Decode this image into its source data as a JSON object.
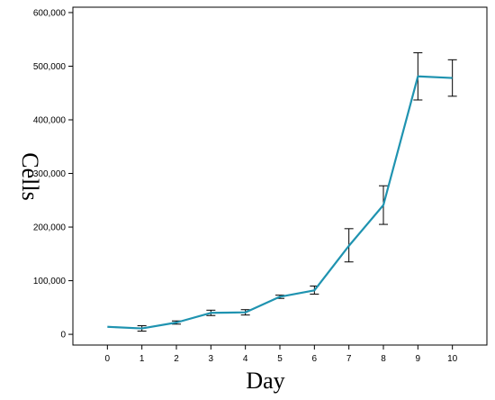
{
  "chart_data": {
    "type": "line",
    "title": "",
    "xlabel": "Day",
    "ylabel": "Cells",
    "x": [
      0,
      1,
      2,
      3,
      4,
      5,
      6,
      7,
      8,
      9,
      10
    ],
    "x_tick_labels": [
      "0",
      "1",
      "2",
      "3",
      "4",
      "5",
      "6",
      "7",
      "8",
      "9",
      "10"
    ],
    "xlim": [
      -1,
      11
    ],
    "ylim": [
      -20000,
      610000
    ],
    "y_ticks": [
      0,
      100000,
      200000,
      300000,
      400000,
      500000,
      600000
    ],
    "y_tick_labels": [
      "0",
      "100,000",
      "200,000",
      "300,000",
      "400,000",
      "500,000",
      "600,000"
    ],
    "grid": false,
    "series": [
      {
        "values": [
          14000,
          11000,
          22000,
          40000,
          41000,
          70000,
          82000,
          165000,
          241000,
          481000,
          478000
        ],
        "error_low": [
          null,
          6000,
          19000,
          35000,
          36000,
          67000,
          75000,
          135000,
          205000,
          437000,
          444000
        ],
        "error_high": [
          null,
          16000,
          25000,
          45000,
          46000,
          73000,
          90000,
          197000,
          277000,
          525000,
          512000
        ],
        "color": "#1f93b0"
      }
    ],
    "axis_color": "#000000"
  }
}
